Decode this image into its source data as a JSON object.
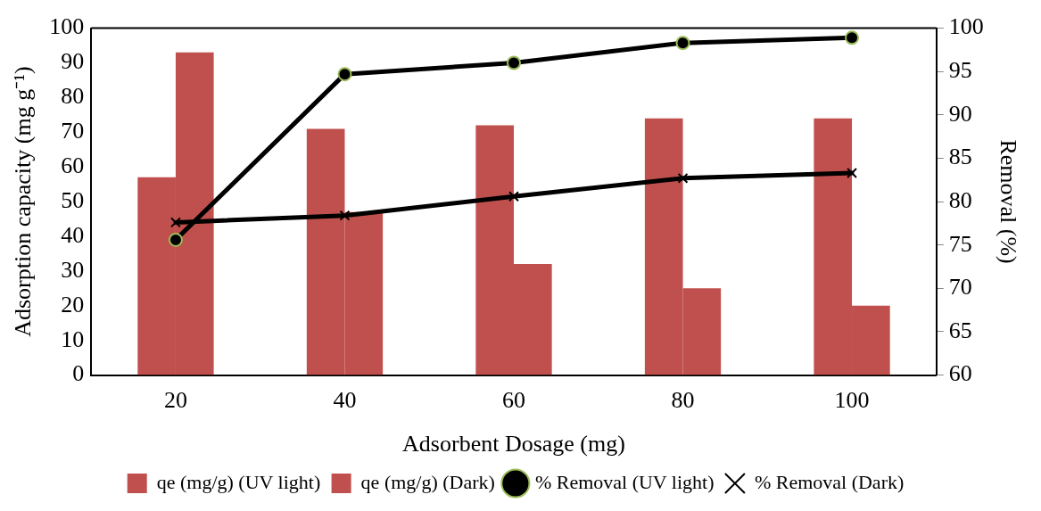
{
  "chart_data": {
    "type": "bar",
    "xlabel": "Adsorbent Dosage (mg)",
    "ylabel": "Adsorption capacity (mg g⁻¹)",
    "y2label": "Removal (%)",
    "categories": [
      "20",
      "40",
      "60",
      "80",
      "100"
    ],
    "ylim": [
      0,
      100
    ],
    "yticks": [
      0,
      10,
      20,
      30,
      40,
      50,
      60,
      70,
      80,
      90,
      100
    ],
    "y2lim": [
      60,
      100
    ],
    "y2ticks": [
      60,
      65,
      70,
      75,
      80,
      85,
      90,
      95,
      100
    ],
    "grid": false,
    "legend": "bottom",
    "series": [
      {
        "name": "qe (mg/g) (UV light)",
        "color": "#c0504d",
        "values": [
          57,
          71,
          72,
          74,
          74
        ]
      },
      {
        "name": "qe (mg/g) (Dark)",
        "color": "#c0504d",
        "values": [
          93,
          47,
          32,
          25,
          20
        ]
      },
      {
        "name": "% Removal (UV light)",
        "type": "line",
        "axis": "y2",
        "color": "#000000",
        "marker": "circle",
        "values": [
          75.6,
          94.7,
          96.0,
          98.3,
          98.9
        ]
      },
      {
        "name": "% Removal (Dark)",
        "type": "line",
        "axis": "y2",
        "color": "#000000",
        "marker": "cross",
        "values": [
          77.6,
          78.4,
          80.6,
          82.7,
          83.3
        ]
      }
    ]
  }
}
